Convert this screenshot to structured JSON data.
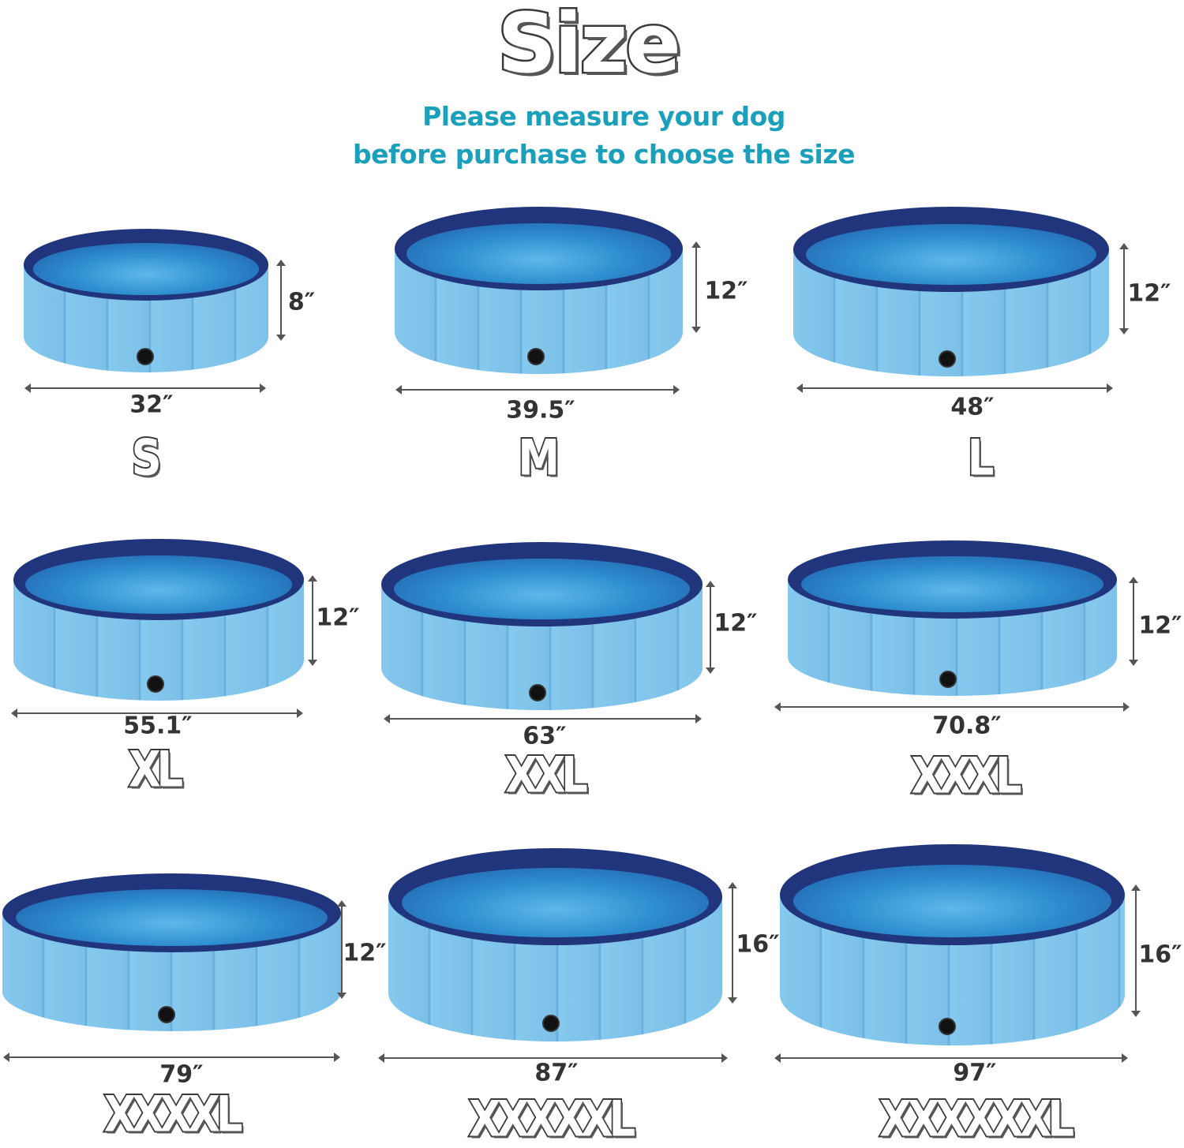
{
  "title": "Size",
  "subtitle": [
    "Please measure your dog",
    "before purchase to choose the size"
  ],
  "colors": {
    "subtitle": "#1ba0bb",
    "pool_side": "#86c9ee",
    "pool_rim": "#20357c"
  },
  "sizes": [
    {
      "label": "S",
      "diameter": "32″",
      "height": "8″"
    },
    {
      "label": "M",
      "diameter": "39.5″",
      "height": "12″"
    },
    {
      "label": "L",
      "diameter": "48″",
      "height": "12″"
    },
    {
      "label": "XL",
      "diameter": "55.1″",
      "height": "12″"
    },
    {
      "label": "XXL",
      "diameter": "63″",
      "height": "12″"
    },
    {
      "label": "XXXL",
      "diameter": "70.8″",
      "height": "12″"
    },
    {
      "label": "XXXXL",
      "diameter": "79″",
      "height": "12″"
    },
    {
      "label": "XXXXXL",
      "diameter": "87″",
      "height": "16″"
    },
    {
      "label": "XXXXXXL",
      "diameter": "97″",
      "height": "16″"
    }
  ]
}
